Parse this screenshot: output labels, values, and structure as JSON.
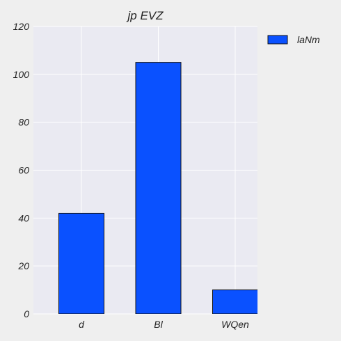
{
  "chart_data": {
    "type": "bar",
    "title": "jp EVZ",
    "xlabel": "",
    "ylabel": "",
    "categories": [
      "d",
      "Bl",
      "WQen"
    ],
    "series": [
      {
        "name": "laNm",
        "values": [
          42,
          105,
          10
        ],
        "color": "#0a51ff"
      }
    ],
    "ylim": [
      0,
      120
    ],
    "yticks": [
      0,
      20,
      40,
      60,
      80,
      100,
      120
    ],
    "grid": true,
    "legend_position": "top-right-outside",
    "plot_background": "#eaeaf2",
    "figure_background": "#efefef"
  }
}
